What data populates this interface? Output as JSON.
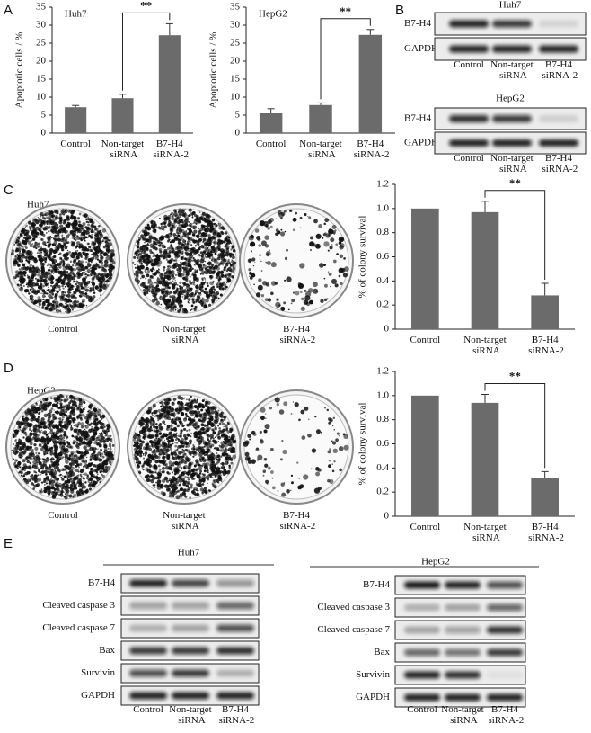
{
  "labels": [
    "A",
    "B",
    "C",
    "D",
    "E"
  ],
  "chart_data": [
    {
      "type": "bar",
      "title": "Huh7",
      "ylabel": "Apoptotic cells / %",
      "categories": [
        "Control",
        "Non-target siRNA",
        "B7-H4 siRNA-2"
      ],
      "values": [
        7.2,
        9.7,
        27.2
      ],
      "errors": [
        0.5,
        1.1,
        3.2
      ],
      "ylim": [
        0,
        35
      ],
      "yticks": [
        0,
        5,
        10,
        15,
        20,
        25,
        30,
        35
      ],
      "color": "#6b6b6b",
      "significance": {
        "label": "**",
        "from": 1,
        "to": 2
      }
    },
    {
      "type": "bar",
      "title": "HepG2",
      "ylabel": "Apoptotic cells / %",
      "categories": [
        "Control",
        "Non-target siRNA",
        "B7-H4 siRNA-2"
      ],
      "values": [
        5.5,
        7.8,
        27.3
      ],
      "errors": [
        1.3,
        0.6,
        1.5
      ],
      "ylim": [
        0,
        35
      ],
      "yticks": [
        0,
        5,
        10,
        15,
        20,
        25,
        30,
        35
      ],
      "color": "#6b6b6b",
      "significance": {
        "label": "**",
        "from": 1,
        "to": 2
      }
    },
    {
      "type": "bar",
      "ylabel": "% of colony survival",
      "categories": [
        "Control",
        "Non-target siRNA",
        "B7-H4 siRNA-2"
      ],
      "values": [
        1,
        0.97,
        0.28
      ],
      "errors": [
        null,
        0.09,
        0.1
      ],
      "ylim": [
        0,
        1.2
      ],
      "yticks": [
        0,
        0.2,
        0.4,
        0.6,
        0.8,
        {
          "value": 1,
          "label": "1.0"
        },
        1.2
      ],
      "color": "#6b6b6b",
      "significance": {
        "label": "**",
        "from": 1,
        "to": 2
      }
    },
    {
      "type": "bar",
      "ylabel": "% of colony survival",
      "categories": [
        "Control",
        "Non-target siRNA",
        "B7-H4 siRNA-2"
      ],
      "values": [
        1,
        0.94,
        0.32
      ],
      "errors": [
        null,
        0.07,
        0.05
      ],
      "ylim": [
        0,
        1.2
      ],
      "yticks": [
        0,
        0.2,
        0.4,
        0.6,
        0.8,
        {
          "value": 1,
          "label": "1.0"
        },
        1.2
      ],
      "color": "#6b6b6b",
      "significance": {
        "label": "**",
        "from": 1,
        "to": 2
      }
    }
  ],
  "colony": [
    {
      "title": "Huh7",
      "dishes": [
        "Control",
        "Non-target siRNA",
        "B7-H4 siRNA-2"
      ]
    },
    {
      "title": "HepG2",
      "dishes": [
        "Control",
        "Non-target siRNA",
        "B7-H4 siRNA-2"
      ]
    }
  ],
  "blots_B": [
    {
      "title": "Huh7",
      "rows": [
        "B7-H4",
        "GAPDH"
      ],
      "lanes": [
        "Control",
        "Non-target siRNA",
        "B7-H4 siRNA-2"
      ]
    },
    {
      "title": "HepG2",
      "rows": [
        "B7-H4",
        "GAPDH"
      ],
      "lanes": [
        "Control",
        "Non-target siRNA",
        "B7-H4 siRNA-2"
      ]
    }
  ],
  "blots_E": [
    {
      "title": "Huh7",
      "rows": [
        "B7-H4",
        "Cleaved caspase 3",
        "Cleaved caspase 7",
        "Bax",
        "Survivin",
        "GAPDH"
      ],
      "lanes": [
        "Control",
        "Non-target siRNA",
        "B7-H4 siRNA-2"
      ]
    },
    {
      "title": "HepG2",
      "rows": [
        "B7-H4",
        "Cleaved caspase 3",
        "Cleaved caspase 7",
        "Bax",
        "Survivin",
        "GAPDH"
      ],
      "lanes": [
        "Control",
        "Non-target siRNA",
        "B7-H4 siRNA-2"
      ]
    }
  ]
}
